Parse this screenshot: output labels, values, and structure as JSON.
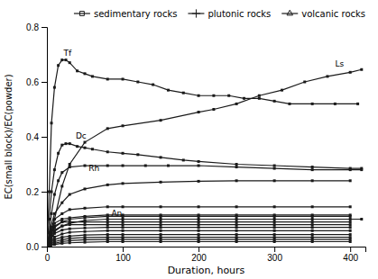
{
  "chart_data": {
    "type": "line",
    "xlabel": "Duration, hours",
    "ylabel": "EC(small block)/EC(powder)",
    "xlim": [
      0,
      420
    ],
    "ylim": [
      0,
      0.8
    ],
    "xticks": [
      0,
      100,
      200,
      300,
      400
    ],
    "yticks": [
      {
        "value": 0.0,
        "label": "0.0"
      },
      0.2,
      0.4,
      0.6,
      0.8
    ],
    "grid": false,
    "color": "#1a1a1a",
    "marker": "square",
    "legend": "upper right",
    "legend_entries": [
      {
        "label": "sedimentary rocks",
        "marker": "square"
      },
      {
        "label": "plutonic rocks",
        "marker": "plus"
      },
      {
        "label": "volcanic rocks",
        "marker": "triangle"
      }
    ],
    "annotations": [
      {
        "text": "Tf",
        "x": 22,
        "y": 0.695
      },
      {
        "text": "Ls",
        "x": 380,
        "y": 0.655
      },
      {
        "text": "Dc",
        "x": 38,
        "y": 0.395
      },
      {
        "text": "Rh",
        "x": 55,
        "y": 0.275
      },
      {
        "text": "An",
        "x": 85,
        "y": 0.112
      }
    ],
    "series": [
      {
        "x": [
          0,
          3,
          6,
          10,
          15,
          20,
          25,
          30,
          40,
          50,
          60,
          80,
          100,
          120,
          140,
          160,
          180,
          200,
          220,
          240,
          260,
          280,
          300,
          320,
          350,
          380,
          410
        ],
        "values": [
          0.0,
          0.2,
          0.45,
          0.58,
          0.66,
          0.68,
          0.68,
          0.67,
          0.64,
          0.63,
          0.62,
          0.61,
          0.61,
          0.6,
          0.59,
          0.57,
          0.56,
          0.55,
          0.55,
          0.55,
          0.54,
          0.54,
          0.53,
          0.52,
          0.52,
          0.52,
          0.52
        ]
      },
      {
        "x": [
          0,
          5,
          10,
          20,
          30,
          50,
          80,
          100,
          150,
          200,
          220,
          250,
          280,
          310,
          340,
          370,
          400,
          415
        ],
        "values": [
          0.0,
          0.04,
          0.1,
          0.22,
          0.3,
          0.38,
          0.43,
          0.44,
          0.46,
          0.49,
          0.5,
          0.52,
          0.55,
          0.57,
          0.6,
          0.62,
          0.635,
          0.645
        ]
      },
      {
        "x": [
          0,
          3,
          6,
          10,
          15,
          20,
          25,
          30,
          40,
          50,
          60,
          80,
          100,
          120,
          150,
          180,
          200,
          250,
          300,
          350,
          400,
          415
        ],
        "values": [
          0.0,
          0.1,
          0.2,
          0.28,
          0.34,
          0.37,
          0.375,
          0.375,
          0.365,
          0.36,
          0.355,
          0.345,
          0.34,
          0.335,
          0.325,
          0.315,
          0.31,
          0.3,
          0.295,
          0.29,
          0.285,
          0.285
        ]
      },
      {
        "x": [
          0,
          3,
          6,
          10,
          15,
          20,
          30,
          50,
          80,
          100,
          130,
          160,
          200,
          250,
          300,
          350,
          400,
          415
        ],
        "values": [
          0.0,
          0.05,
          0.12,
          0.19,
          0.24,
          0.27,
          0.29,
          0.295,
          0.295,
          0.295,
          0.295,
          0.295,
          0.295,
          0.29,
          0.285,
          0.28,
          0.28,
          0.28
        ]
      },
      {
        "x": [
          0,
          5,
          10,
          20,
          30,
          50,
          80,
          100,
          150,
          200,
          250,
          300,
          350,
          400,
          415
        ],
        "values": [
          0.0,
          0.025,
          0.055,
          0.075,
          0.085,
          0.095,
          0.1,
          0.1,
          0.1,
          0.1,
          0.1,
          0.1,
          0.1,
          0.1,
          0.1
        ]
      },
      {
        "x": [
          0,
          5,
          10,
          20,
          30,
          50,
          80,
          100,
          150,
          200,
          250,
          300,
          350,
          400
        ],
        "values": [
          0.0,
          0.06,
          0.1,
          0.12,
          0.135,
          0.14,
          0.145,
          0.145,
          0.145,
          0.145,
          0.145,
          0.145,
          0.145,
          0.145
        ]
      },
      {
        "x": [
          0,
          5,
          10,
          20,
          30,
          50,
          80,
          100,
          150,
          200,
          250,
          300,
          350,
          400
        ],
        "values": [
          0.0,
          0.05,
          0.085,
          0.1,
          0.105,
          0.11,
          0.115,
          0.115,
          0.115,
          0.115,
          0.115,
          0.115,
          0.115,
          0.115
        ]
      },
      {
        "x": [
          0,
          5,
          10,
          20,
          30,
          50,
          80,
          100,
          150,
          200,
          250,
          300,
          350,
          400
        ],
        "values": [
          0.0,
          0.07,
          0.12,
          0.16,
          0.19,
          0.21,
          0.225,
          0.23,
          0.235,
          0.238,
          0.24,
          0.24,
          0.24,
          0.24
        ]
      },
      {
        "x": [
          0,
          5,
          10,
          20,
          30,
          50,
          80,
          100,
          150,
          200,
          250,
          300,
          350,
          400
        ],
        "values": [
          0.0,
          0.04,
          0.07,
          0.09,
          0.1,
          0.105,
          0.11,
          0.11,
          0.11,
          0.11,
          0.11,
          0.11,
          0.11,
          0.11
        ]
      },
      {
        "x": [
          0,
          5,
          10,
          20,
          30,
          50,
          80,
          100,
          150,
          200,
          250,
          300,
          350,
          400
        ],
        "values": [
          0.0,
          0.045,
          0.075,
          0.09,
          0.09,
          0.09,
          0.09,
          0.09,
          0.09,
          0.09,
          0.09,
          0.09,
          0.09,
          0.09
        ]
      },
      {
        "x": [
          0,
          5,
          10,
          20,
          30,
          50,
          80,
          100,
          150,
          200,
          250,
          300,
          350,
          400
        ],
        "values": [
          0.0,
          0.035,
          0.06,
          0.075,
          0.08,
          0.08,
          0.08,
          0.08,
          0.08,
          0.08,
          0.08,
          0.08,
          0.08,
          0.08
        ]
      },
      {
        "x": [
          0,
          5,
          10,
          20,
          30,
          50,
          80,
          100,
          150,
          200,
          250,
          300,
          350,
          400
        ],
        "values": [
          0.0,
          0.025,
          0.048,
          0.06,
          0.065,
          0.068,
          0.07,
          0.07,
          0.07,
          0.07,
          0.07,
          0.07,
          0.07,
          0.07
        ]
      },
      {
        "x": [
          0,
          5,
          10,
          20,
          30,
          50,
          80,
          100,
          150,
          200,
          250,
          300,
          350,
          400
        ],
        "values": [
          0.0,
          0.018,
          0.035,
          0.046,
          0.052,
          0.055,
          0.058,
          0.058,
          0.058,
          0.058,
          0.058,
          0.058,
          0.058,
          0.058
        ]
      },
      {
        "x": [
          0,
          5,
          10,
          20,
          30,
          50,
          80,
          100,
          150,
          200,
          250,
          300,
          350,
          400
        ],
        "values": [
          0.0,
          0.013,
          0.026,
          0.034,
          0.038,
          0.042,
          0.044,
          0.044,
          0.044,
          0.044,
          0.044,
          0.044,
          0.044,
          0.044
        ]
      },
      {
        "x": [
          0,
          5,
          10,
          20,
          30,
          50,
          80,
          100,
          150,
          200,
          250,
          300,
          350,
          400
        ],
        "values": [
          0.0,
          0.009,
          0.018,
          0.025,
          0.03,
          0.033,
          0.034,
          0.034,
          0.034,
          0.034,
          0.034,
          0.034,
          0.034,
          0.034
        ]
      },
      {
        "x": [
          0,
          5,
          10,
          20,
          30,
          50,
          80,
          100,
          150,
          200,
          250,
          300,
          350,
          400
        ],
        "values": [
          0.0,
          0.006,
          0.012,
          0.018,
          0.022,
          0.025,
          0.026,
          0.026,
          0.026,
          0.026,
          0.026,
          0.026,
          0.026,
          0.026
        ]
      },
      {
        "x": [
          0,
          5,
          10,
          20,
          30,
          50,
          80,
          100,
          150,
          200,
          250,
          300,
          350,
          400
        ],
        "values": [
          0.0,
          0.004,
          0.008,
          0.012,
          0.014,
          0.016,
          0.018,
          0.018,
          0.018,
          0.018,
          0.018,
          0.018,
          0.018,
          0.018
        ]
      }
    ]
  }
}
